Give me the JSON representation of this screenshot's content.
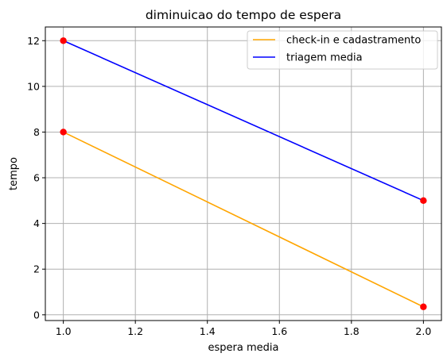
{
  "chart_data": {
    "type": "line",
    "title": "diminuicao do tempo de espera",
    "xlabel": "espera media",
    "ylabel": "tempo",
    "xlim": [
      0.95,
      2.05
    ],
    "ylim": [
      -0.25,
      12.6
    ],
    "xticks": [
      "1.0",
      "1.2",
      "1.4",
      "1.6",
      "1.8",
      "2.0"
    ],
    "yticks": [
      "0",
      "2",
      "4",
      "6",
      "8",
      "10",
      "12"
    ],
    "grid": true,
    "legend_position": "top-right",
    "series": [
      {
        "name": "check-in e cadastramento",
        "color": "#ffa500",
        "x": [
          1.0,
          2.0
        ],
        "y": [
          8,
          0.35
        ]
      },
      {
        "name": "triagem media",
        "color": "#0000ff",
        "x": [
          1.0,
          2.0
        ],
        "y": [
          12,
          5
        ]
      }
    ],
    "marker_color": "#ff0000"
  }
}
